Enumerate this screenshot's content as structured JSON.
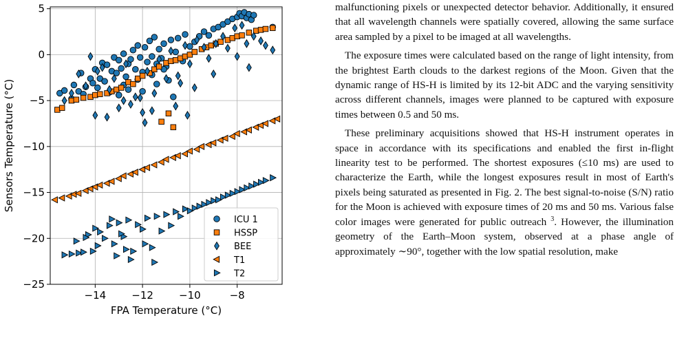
{
  "chart_data": {
    "type": "scatter",
    "xlabel": "FPA Temperature (°C)",
    "ylabel": "Sensors Temperature (°C)",
    "xlim": [
      -15.9,
      -6.1
    ],
    "ylim": [
      -25,
      5.2
    ],
    "xticks": [
      -14,
      -12,
      -10,
      -8
    ],
    "yticks": [
      5,
      0,
      -5,
      -10,
      -15,
      -20,
      -25
    ],
    "xtick_labels": [
      "−14",
      "−12",
      "−10",
      "−8"
    ],
    "ytick_labels": [
      "5",
      "0",
      "−5",
      "−10",
      "−15",
      "−20",
      "−25"
    ],
    "grid": true,
    "legend_position": "lower-right",
    "series": [
      {
        "name": "ICU 1",
        "marker": "circle",
        "color": "#1f77b4",
        "x": [
          -15.5,
          -15.3,
          -15.0,
          -14.9,
          -14.7,
          -14.6,
          -14.4,
          -14.2,
          -14.1,
          -14.0,
          -13.8,
          -13.7,
          -13.6,
          -13.5,
          -13.3,
          -13.2,
          -13.1,
          -13.0,
          -12.9,
          -12.8,
          -12.7,
          -12.6,
          -12.5,
          -12.4,
          -12.3,
          -12.2,
          -12.1,
          -12.0,
          -11.9,
          -11.8,
          -11.7,
          -11.6,
          -11.5,
          -11.4,
          -11.3,
          -11.2,
          -11.1,
          -11.0,
          -10.8,
          -10.6,
          -10.5,
          -10.3,
          -10.2,
          -10.0,
          -9.8,
          -9.6,
          -9.4,
          -9.2,
          -9.0,
          -8.8,
          -8.6,
          -8.4,
          -8.2,
          -8.0,
          -7.9,
          -7.8,
          -7.7,
          -7.6,
          -7.5,
          -7.4,
          -7.3,
          -6.5,
          -14.5,
          -13.9,
          -13.4,
          -12.8,
          -12.2,
          -11.6,
          -11.1,
          -10.7,
          -12.0,
          -13.0,
          -11.4,
          -12.6,
          -10.9
        ],
        "y": [
          -4.2,
          -3.9,
          -4.8,
          -3.3,
          -4.0,
          -2.0,
          -3.5,
          -2.6,
          -3.1,
          -1.6,
          -2.6,
          -0.9,
          -2.9,
          -1.1,
          -1.8,
          -0.3,
          -2.0,
          -0.6,
          -1.5,
          0.1,
          -2.4,
          -1.0,
          -0.5,
          0.5,
          -1.6,
          1.0,
          -0.3,
          -1.9,
          0.8,
          -0.8,
          1.5,
          -0.2,
          1.9,
          -1.0,
          0.6,
          -0.4,
          1.2,
          -1.3,
          1.6,
          0.3,
          1.8,
          -0.7,
          2.2,
          0.9,
          1.4,
          2.0,
          2.5,
          2.1,
          2.8,
          3.0,
          3.3,
          3.6,
          3.9,
          4.1,
          4.5,
          4.2,
          4.6,
          4.0,
          4.4,
          3.8,
          4.3,
          3.0,
          -4.3,
          -3.6,
          -4.1,
          -3.3,
          -2.7,
          -2.2,
          -1.6,
          -4.6,
          -4.0,
          -4.4,
          -3.2,
          -3.8,
          -2.8
        ]
      },
      {
        "name": "HSSP",
        "marker": "square",
        "color": "#ff7f0e",
        "x": [
          -15.6,
          -15.4,
          -15.0,
          -14.8,
          -14.5,
          -14.2,
          -14.0,
          -13.8,
          -13.5,
          -13.3,
          -13.1,
          -12.9,
          -12.6,
          -12.4,
          -12.2,
          -12.0,
          -11.7,
          -11.5,
          -11.3,
          -11.0,
          -10.8,
          -10.6,
          -10.4,
          -10.2,
          -10.0,
          -9.8,
          -9.5,
          -9.3,
          -9.1,
          -8.9,
          -8.7,
          -8.4,
          -8.2,
          -8.0,
          -7.8,
          -7.5,
          -7.2,
          -7.0,
          -6.8,
          -6.5,
          -10.9,
          -11.2,
          -10.7
        ],
        "y": [
          -6.0,
          -5.8,
          -5.0,
          -4.9,
          -4.7,
          -4.6,
          -4.4,
          -4.3,
          -4.2,
          -4.0,
          -3.8,
          -3.6,
          -3.0,
          -3.2,
          -2.6,
          -2.3,
          -2.0,
          -1.6,
          -1.3,
          -0.9,
          -0.7,
          -0.6,
          -0.4,
          -0.2,
          0.0,
          0.3,
          0.6,
          0.8,
          1.0,
          1.2,
          1.4,
          1.6,
          1.8,
          2.0,
          2.1,
          2.4,
          2.6,
          2.7,
          2.8,
          2.9,
          -6.4,
          -7.3,
          -7.9
        ]
      },
      {
        "name": "BEE",
        "marker": "diamond",
        "color": "#1f77b4",
        "x": [
          -15.3,
          -15.0,
          -14.7,
          -14.4,
          -14.2,
          -13.9,
          -13.7,
          -13.4,
          -13.2,
          -13.0,
          -12.7,
          -12.5,
          -12.3,
          -12.0,
          -11.8,
          -11.5,
          -11.3,
          -11.0,
          -10.8,
          -10.5,
          -10.2,
          -10.0,
          -9.7,
          -9.4,
          -9.2,
          -8.9,
          -8.6,
          -8.4,
          -8.1,
          -7.8,
          -7.6,
          -7.3,
          -7.0,
          -6.8,
          -6.5,
          -14.0,
          -12.8,
          -11.6,
          -10.6,
          -9.8,
          -9.0,
          -8.0,
          -7.5,
          -13.5,
          -12.1,
          -10.4,
          -11.9,
          -10.1
        ],
        "y": [
          -5.0,
          -4.2,
          -2.1,
          -3.4,
          -0.2,
          -1.8,
          -1.4,
          -3.8,
          -2.6,
          -5.8,
          -1.0,
          -5.4,
          -4.6,
          -6.3,
          -1.8,
          -4.2,
          -0.5,
          -2.6,
          0.4,
          -2.3,
          1.0,
          -1.0,
          1.6,
          0.8,
          -0.4,
          1.2,
          2.0,
          0.7,
          2.9,
          3.2,
          1.2,
          2.0,
          1.5,
          1.0,
          0.5,
          -6.6,
          -5.0,
          -6.1,
          -5.6,
          -3.6,
          -2.1,
          -0.2,
          -1.4,
          -6.8,
          -4.7,
          -3.1,
          -7.4,
          -6.6
        ]
      },
      {
        "name": "T1",
        "marker": "triangle-left",
        "color": "#ff7f0e",
        "x": [
          -15.7,
          -15.4,
          -15.1,
          -14.9,
          -14.7,
          -14.4,
          -14.2,
          -14.0,
          -13.8,
          -13.5,
          -13.3,
          -13.0,
          -12.8,
          -12.5,
          -12.3,
          -12.0,
          -11.8,
          -11.5,
          -11.2,
          -11.0,
          -10.7,
          -10.5,
          -10.2,
          -10.0,
          -9.7,
          -9.5,
          -9.2,
          -9.0,
          -8.7,
          -8.5,
          -8.2,
          -8.0,
          -7.7,
          -7.5,
          -7.2,
          -7.0,
          -6.8,
          -6.5,
          -6.3
        ],
        "y": [
          -15.8,
          -15.6,
          -15.4,
          -15.2,
          -15.1,
          -14.8,
          -14.6,
          -14.4,
          -14.2,
          -14.0,
          -13.8,
          -13.5,
          -13.2,
          -13.0,
          -12.8,
          -12.5,
          -12.3,
          -12.0,
          -11.7,
          -11.4,
          -11.2,
          -11.0,
          -10.8,
          -10.5,
          -10.3,
          -10.0,
          -9.8,
          -9.6,
          -9.3,
          -9.1,
          -8.9,
          -8.6,
          -8.4,
          -8.2,
          -7.9,
          -7.7,
          -7.5,
          -7.2,
          -7.0
        ]
      },
      {
        "name": "T2",
        "marker": "triangle-right",
        "color": "#1f77b4",
        "x": [
          -15.3,
          -15.0,
          -14.7,
          -14.5,
          -14.3,
          -14.1,
          -14.0,
          -13.8,
          -13.6,
          -13.4,
          -13.2,
          -13.0,
          -12.8,
          -12.6,
          -12.4,
          -12.2,
          -12.0,
          -11.8,
          -11.6,
          -11.4,
          -11.2,
          -11.0,
          -10.8,
          -10.6,
          -10.4,
          -10.2,
          -10.0,
          -9.8,
          -9.6,
          -9.4,
          -9.2,
          -9.0,
          -8.8,
          -8.6,
          -8.4,
          -8.2,
          -8.0,
          -7.8,
          -7.6,
          -7.4,
          -7.2,
          -7.0,
          -6.8,
          -6.5,
          -14.8,
          -14.4,
          -13.9,
          -13.1,
          -12.5,
          -12.9,
          -11.9,
          -11.5,
          -12.7,
          -13.3
        ],
        "y": [
          -21.8,
          -21.7,
          -21.6,
          -21.5,
          -19.6,
          -21.4,
          -18.9,
          -19.3,
          -20.0,
          -18.6,
          -20.6,
          -18.3,
          -19.8,
          -18.0,
          -21.4,
          -18.5,
          -19.0,
          -17.8,
          -21.0,
          -17.6,
          -19.2,
          -17.4,
          -18.6,
          -17.1,
          -17.6,
          -16.8,
          -17.0,
          -16.7,
          -16.5,
          -16.3,
          -16.1,
          -15.9,
          -15.8,
          -15.5,
          -15.3,
          -15.1,
          -14.9,
          -14.7,
          -14.5,
          -14.3,
          -14.1,
          -13.9,
          -13.7,
          -13.4,
          -20.3,
          -19.9,
          -20.8,
          -21.9,
          -22.3,
          -19.5,
          -20.6,
          -22.6,
          -21.2,
          -17.9
        ]
      }
    ]
  },
  "text": {
    "p0": "malfunctioning pixels or unexpected detector behavior. Additionally, it ensured that all wavelength channels were spatially covered, allowing the same surface area sampled by a pixel to be imaged at all wavelengths.",
    "p1": "The exposure times were calculated based on the range of light intensity, from the brightest Earth clouds to the darkest regions of the Moon. Given that the dynamic range of HS-H is limited by its 12-bit ADC and the varying sensitivity across different channels, images were planned to be captured with exposure times between 0.5 and 50 ms.",
    "p2_a": "These preliminary acquisitions showed that HS-H instrument operates in space in accordance with its specifications and enabled the first in-flight linearity test to be performed. The shortest exposures (≤10 ms) are used to characterize the Earth, while the longest exposures result in most of Earth's pixels being saturated as presented in Fig. 2. The best signal-to-noise (S/N) ratio for the Moon is achieved with exposure times of 20 ms and 50 ms. Various false color images were generated for public outreach",
    "p2_sup": "3",
    "p2_b": ". However, the illumination geometry of the Earth–Moon system, observed at a phase angle of approximately ∼90°, together with the low spatial resolution, make"
  }
}
